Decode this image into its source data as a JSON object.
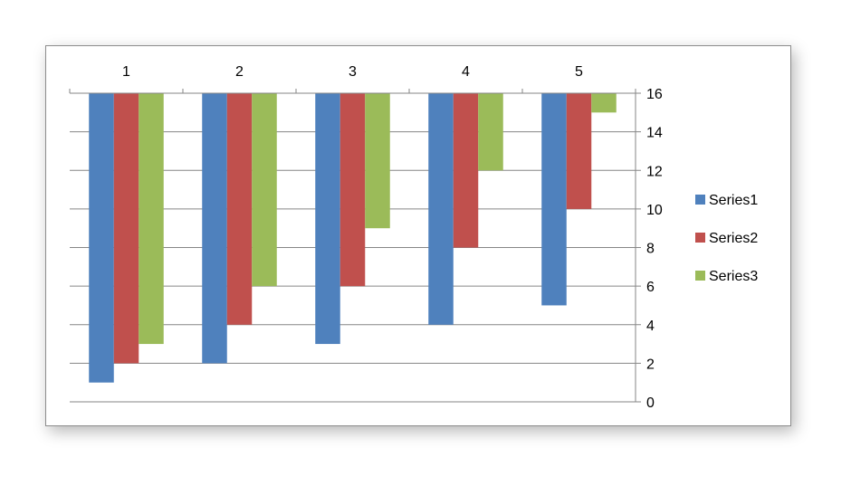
{
  "chart_data": {
    "type": "bar",
    "orientation": "vertical",
    "x_axis_position": "top",
    "y_axis_position": "right",
    "y_reversed": true,
    "categories": [
      "1",
      "2",
      "3",
      "4",
      "5"
    ],
    "series": [
      {
        "name": "Series1",
        "values": [
          1,
          2,
          3,
          4,
          5
        ],
        "color": "#4F81BD"
      },
      {
        "name": "Series2",
        "values": [
          2,
          4,
          6,
          8,
          10
        ],
        "color": "#C0504D"
      },
      {
        "name": "Series3",
        "values": [
          3,
          6,
          9,
          12,
          15
        ],
        "color": "#9BBB59"
      }
    ],
    "ylim": [
      0,
      16
    ],
    "yticks": [
      "0",
      "2",
      "4",
      "6",
      "8",
      "10",
      "12",
      "14",
      "16"
    ],
    "grid": true,
    "legend": "right"
  }
}
